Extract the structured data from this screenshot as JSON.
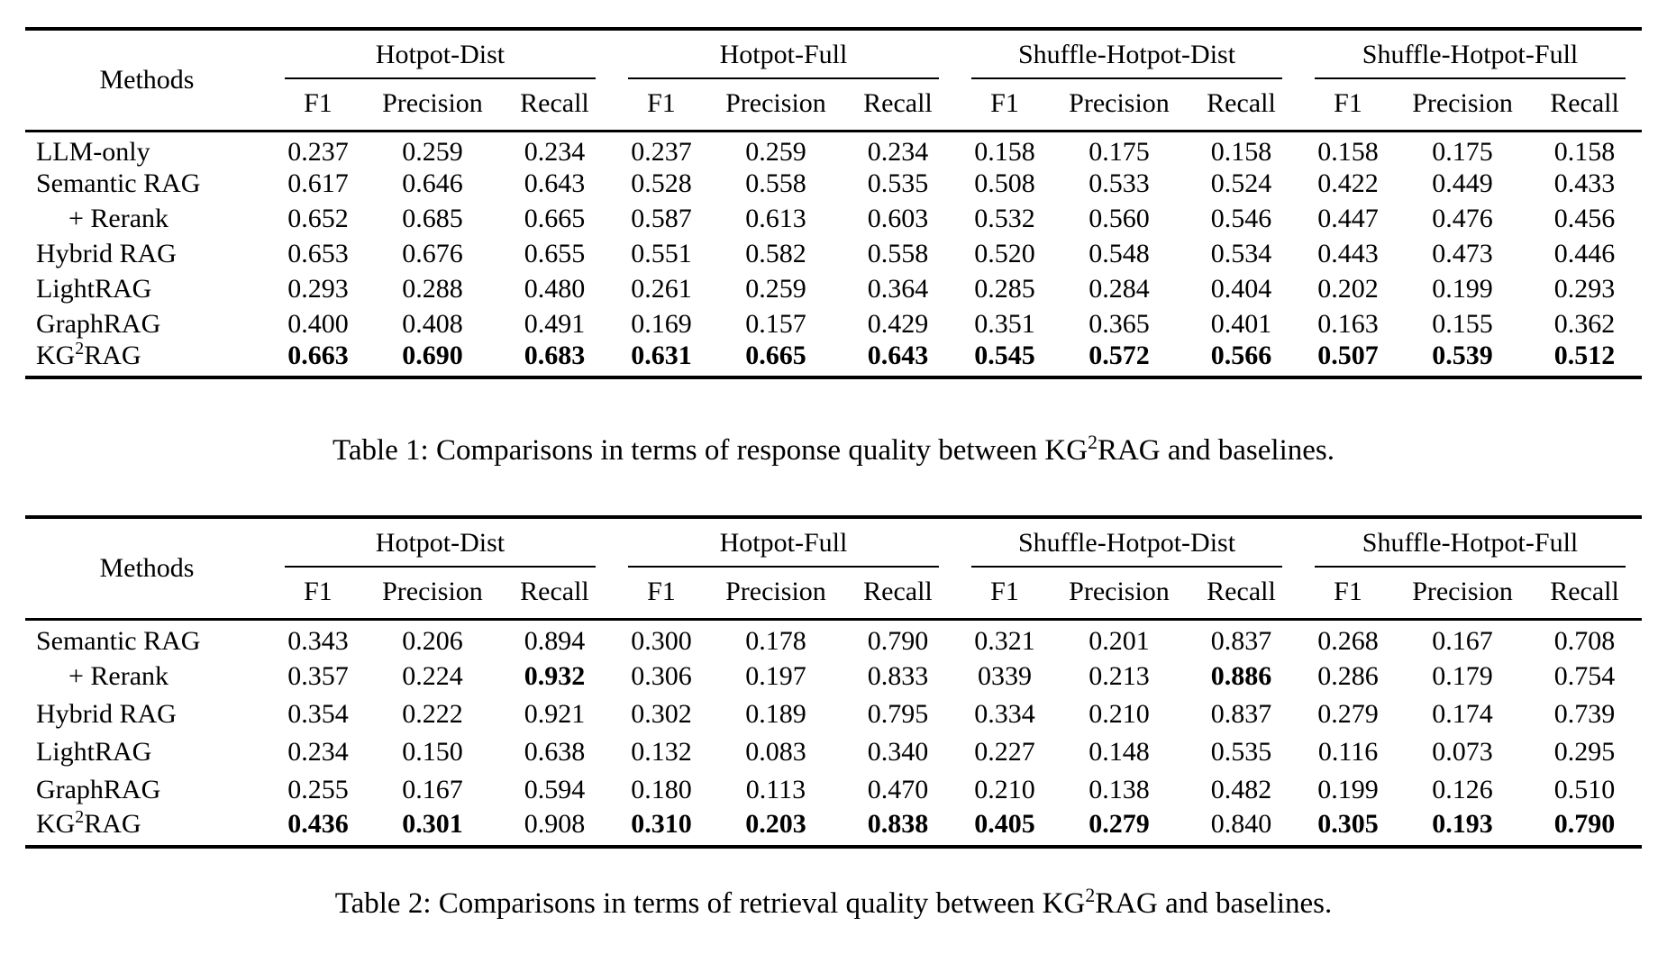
{
  "table1": {
    "methods_header": "Methods",
    "groups": [
      {
        "label": "Hotpot-Dist"
      },
      {
        "label": "Hotpot-Full"
      },
      {
        "label": "Shuffle-Hotpot-Dist"
      },
      {
        "label": "Shuffle-Hotpot-Full"
      }
    ],
    "sub_headers": [
      "F1",
      "Precision",
      "Recall"
    ],
    "rows": [
      {
        "method": {
          "pre": "LLM-only",
          "sup": "",
          "post": ""
        },
        "indent": false,
        "values": [
          "0.237",
          "0.259",
          "0.234",
          "0.237",
          "0.259",
          "0.234",
          "0.158",
          "0.175",
          "0.158",
          "0.158",
          "0.175",
          "0.158"
        ],
        "bold": [
          0,
          0,
          0,
          0,
          0,
          0,
          0,
          0,
          0,
          0,
          0,
          0
        ]
      },
      {
        "method": {
          "pre": "Semantic RAG",
          "sup": "",
          "post": ""
        },
        "indent": false,
        "values": [
          "0.617",
          "0.646",
          "0.643",
          "0.528",
          "0.558",
          "0.535",
          "0.508",
          "0.533",
          "0.524",
          "0.422",
          "0.449",
          "0.433"
        ],
        "bold": [
          0,
          0,
          0,
          0,
          0,
          0,
          0,
          0,
          0,
          0,
          0,
          0
        ]
      },
      {
        "method": {
          "pre": "+ Rerank",
          "sup": "",
          "post": ""
        },
        "indent": true,
        "values": [
          "0.652",
          "0.685",
          "0.665",
          "0.587",
          "0.613",
          "0.603",
          "0.532",
          "0.560",
          "0.546",
          "0.447",
          "0.476",
          "0.456"
        ],
        "bold": [
          0,
          0,
          0,
          0,
          0,
          0,
          0,
          0,
          0,
          0,
          0,
          0
        ]
      },
      {
        "method": {
          "pre": "Hybrid RAG",
          "sup": "",
          "post": ""
        },
        "indent": false,
        "values": [
          "0.653",
          "0.676",
          "0.655",
          "0.551",
          "0.582",
          "0.558",
          "0.520",
          "0.548",
          "0.534",
          "0.443",
          "0.473",
          "0.446"
        ],
        "bold": [
          0,
          0,
          0,
          0,
          0,
          0,
          0,
          0,
          0,
          0,
          0,
          0
        ]
      },
      {
        "method": {
          "pre": "LightRAG",
          "sup": "",
          "post": ""
        },
        "indent": false,
        "values": [
          "0.293",
          "0.288",
          "0.480",
          "0.261",
          "0.259",
          "0.364",
          "0.285",
          "0.284",
          "0.404",
          "0.202",
          "0.199",
          "0.293"
        ],
        "bold": [
          0,
          0,
          0,
          0,
          0,
          0,
          0,
          0,
          0,
          0,
          0,
          0
        ]
      },
      {
        "method": {
          "pre": "GraphRAG",
          "sup": "",
          "post": ""
        },
        "indent": false,
        "values": [
          "0.400",
          "0.408",
          "0.491",
          "0.169",
          "0.157",
          "0.429",
          "0.351",
          "0.365",
          "0.401",
          "0.163",
          "0.155",
          "0.362"
        ],
        "bold": [
          0,
          0,
          0,
          0,
          0,
          0,
          0,
          0,
          0,
          0,
          0,
          0
        ]
      },
      {
        "method": {
          "pre": "KG",
          "sup": "2",
          "post": "RAG"
        },
        "indent": false,
        "values": [
          "0.663",
          "0.690",
          "0.683",
          "0.631",
          "0.665",
          "0.643",
          "0.545",
          "0.572",
          "0.566",
          "0.507",
          "0.539",
          "0.512"
        ],
        "bold": [
          1,
          1,
          1,
          1,
          1,
          1,
          1,
          1,
          1,
          1,
          1,
          1
        ]
      }
    ],
    "caption": {
      "pre": "Table 1: Comparisons in terms of response quality between KG",
      "sup": "2",
      "post": "RAG and baselines."
    }
  },
  "table2": {
    "methods_header": "Methods",
    "groups": [
      {
        "label": "Hotpot-Dist"
      },
      {
        "label": "Hotpot-Full"
      },
      {
        "label": "Shuffle-Hotpot-Dist"
      },
      {
        "label": "Shuffle-Hotpot-Full"
      }
    ],
    "sub_headers": [
      "F1",
      "Precision",
      "Recall"
    ],
    "rows": [
      {
        "method": {
          "pre": "Semantic RAG",
          "sup": "",
          "post": ""
        },
        "indent": false,
        "values": [
          "0.343",
          "0.206",
          "0.894",
          "0.300",
          "0.178",
          "0.790",
          "0.321",
          "0.201",
          "0.837",
          "0.268",
          "0.167",
          "0.708"
        ],
        "bold": [
          0,
          0,
          0,
          0,
          0,
          0,
          0,
          0,
          0,
          0,
          0,
          0
        ]
      },
      {
        "method": {
          "pre": "+ Rerank",
          "sup": "",
          "post": ""
        },
        "indent": true,
        "values": [
          "0.357",
          "0.224",
          "0.932",
          "0.306",
          "0.197",
          "0.833",
          "0339",
          "0.213",
          "0.886",
          "0.286",
          "0.179",
          "0.754"
        ],
        "bold": [
          0,
          0,
          1,
          0,
          0,
          0,
          0,
          0,
          1,
          0,
          0,
          0
        ]
      },
      {
        "method": {
          "pre": "Hybrid RAG",
          "sup": "",
          "post": ""
        },
        "indent": false,
        "values": [
          "0.354",
          "0.222",
          "0.921",
          "0.302",
          "0.189",
          "0.795",
          "0.334",
          "0.210",
          "0.837",
          "0.279",
          "0.174",
          "0.739"
        ],
        "bold": [
          0,
          0,
          0,
          0,
          0,
          0,
          0,
          0,
          0,
          0,
          0,
          0
        ]
      },
      {
        "method": {
          "pre": "LightRAG",
          "sup": "",
          "post": ""
        },
        "indent": false,
        "values": [
          "0.234",
          "0.150",
          "0.638",
          "0.132",
          "0.083",
          "0.340",
          "0.227",
          "0.148",
          "0.535",
          "0.116",
          "0.073",
          "0.295"
        ],
        "bold": [
          0,
          0,
          0,
          0,
          0,
          0,
          0,
          0,
          0,
          0,
          0,
          0
        ]
      },
      {
        "method": {
          "pre": "GraphRAG",
          "sup": "",
          "post": ""
        },
        "indent": false,
        "values": [
          "0.255",
          "0.167",
          "0.594",
          "0.180",
          "0.113",
          "0.470",
          "0.210",
          "0.138",
          "0.482",
          "0.199",
          "0.126",
          "0.510"
        ],
        "bold": [
          0,
          0,
          0,
          0,
          0,
          0,
          0,
          0,
          0,
          0,
          0,
          0
        ]
      },
      {
        "method": {
          "pre": "KG",
          "sup": "2",
          "post": "RAG"
        },
        "indent": false,
        "values": [
          "0.436",
          "0.301",
          "0.908",
          "0.310",
          "0.203",
          "0.838",
          "0.405",
          "0.279",
          "0.840",
          "0.305",
          "0.193",
          "0.790"
        ],
        "bold": [
          1,
          1,
          0,
          1,
          1,
          1,
          1,
          1,
          0,
          1,
          1,
          1
        ]
      }
    ],
    "caption": {
      "pre": "Table 2: Comparisons in terms of retrieval quality between KG",
      "sup": "2",
      "post": "RAG and baselines."
    }
  }
}
